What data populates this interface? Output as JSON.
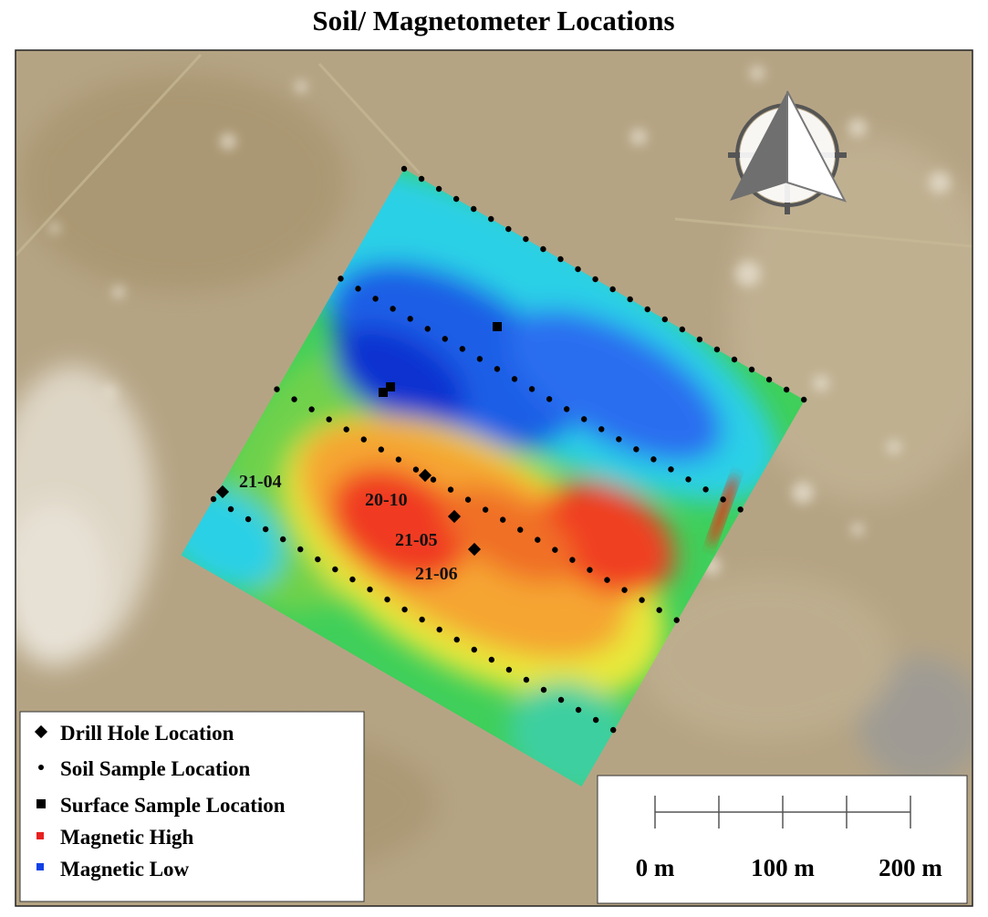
{
  "title": "Soil/ Magnetometer Locations",
  "legend": [
    {
      "label": "Drill Hole Location"
    },
    {
      "label": "Soil Sample Location"
    },
    {
      "label": "Surface Sample Location"
    },
    {
      "label": "Magnetic High"
    },
    {
      "label": "Magnetic Low"
    }
  ],
  "drill_holes": [
    {
      "label": "21-04"
    },
    {
      "label": "20-10"
    },
    {
      "label": "21-05"
    },
    {
      "label": "21-06"
    }
  ],
  "scale_bar": {
    "labels": [
      "0 m",
      "100 m",
      "200 m"
    ]
  }
}
